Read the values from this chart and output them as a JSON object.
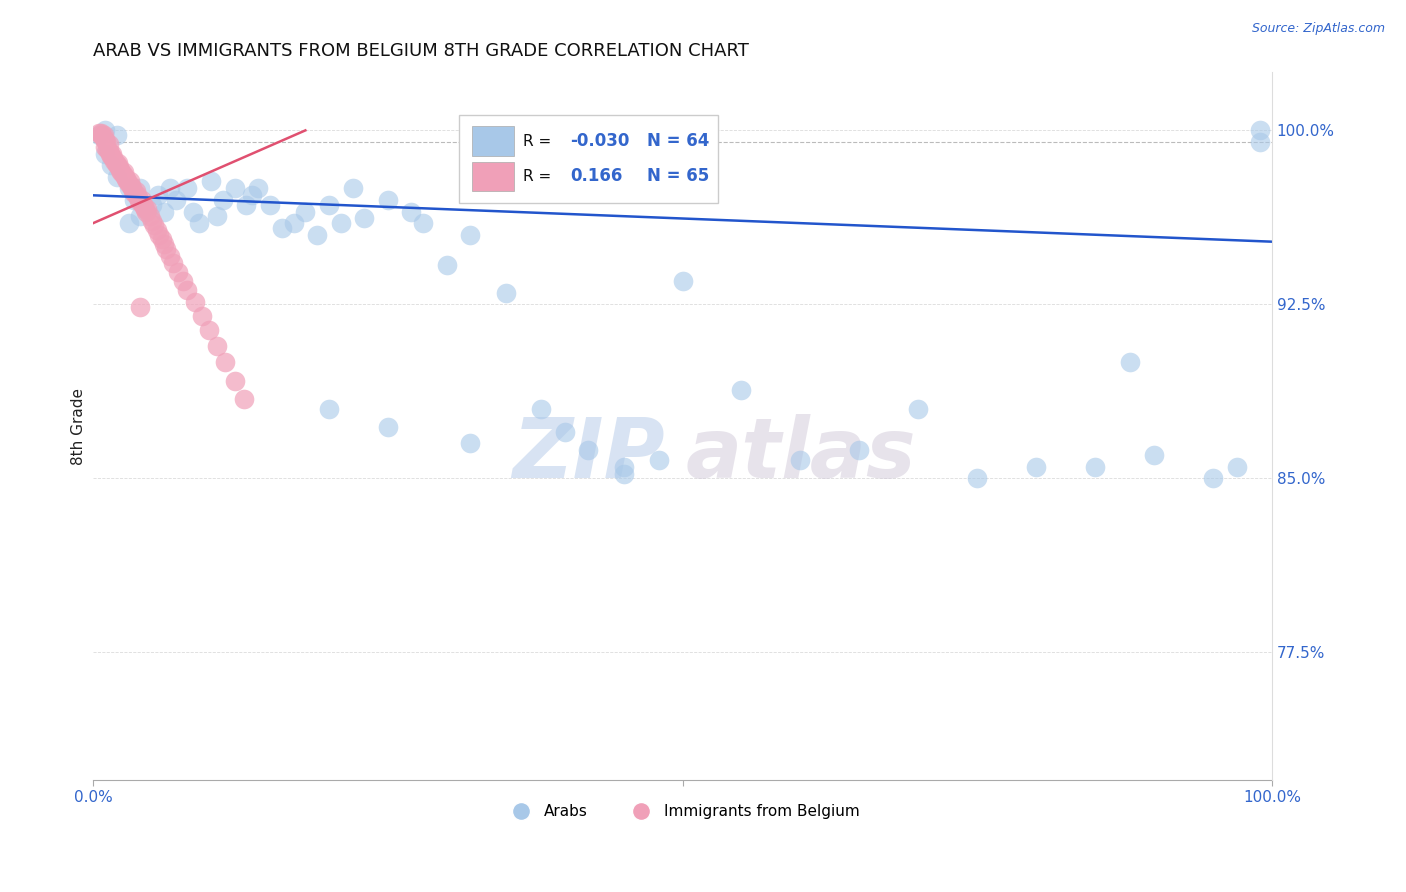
{
  "title": "ARAB VS IMMIGRANTS FROM BELGIUM 8TH GRADE CORRELATION CHART",
  "source": "Source: ZipAtlas.com",
  "ylabel": "8th Grade",
  "xlim": [
    0,
    1
  ],
  "ylim": [
    0.72,
    1.025
  ],
  "blue_color": "#a8c8e8",
  "pink_color": "#f0a0b8",
  "blue_line_color": "#2255cc",
  "pink_line_color": "#e05070",
  "R_blue": -0.03,
  "N_blue": 64,
  "R_pink": 0.166,
  "N_pink": 65,
  "legend_label_blue": "Arabs",
  "legend_label_pink": "Immigrants from Belgium",
  "right_ytick_values": [
    0.775,
    0.85,
    0.925,
    1.0
  ],
  "right_ytick_labels": [
    "77.5%",
    "85.0%",
    "92.5%",
    "100.0%"
  ],
  "dashed_line_y": 0.995,
  "blue_line_x": [
    0.0,
    1.0
  ],
  "blue_line_y": [
    0.972,
    0.952
  ],
  "pink_line_x": [
    0.0,
    0.18
  ],
  "pink_line_y": [
    0.96,
    1.0
  ],
  "blue_scatter_x": [
    0.005,
    0.01,
    0.01,
    0.015,
    0.02,
    0.02,
    0.03,
    0.03,
    0.035,
    0.04,
    0.04,
    0.05,
    0.055,
    0.06,
    0.065,
    0.07,
    0.08,
    0.085,
    0.09,
    0.1,
    0.105,
    0.11,
    0.12,
    0.13,
    0.135,
    0.14,
    0.15,
    0.16,
    0.17,
    0.18,
    0.19,
    0.2,
    0.21,
    0.22,
    0.23,
    0.25,
    0.27,
    0.28,
    0.3,
    0.32,
    0.35,
    0.38,
    0.4,
    0.42,
    0.45,
    0.48,
    0.5,
    0.55,
    0.6,
    0.65,
    0.7,
    0.75,
    0.8,
    0.85,
    0.88,
    0.9,
    0.95,
    0.97,
    0.99,
    0.99,
    0.2,
    0.25,
    0.32,
    0.45
  ],
  "blue_scatter_y": [
    0.998,
    1.0,
    0.99,
    0.985,
    0.998,
    0.98,
    0.975,
    0.96,
    0.97,
    0.975,
    0.963,
    0.968,
    0.972,
    0.965,
    0.975,
    0.97,
    0.975,
    0.965,
    0.96,
    0.978,
    0.963,
    0.97,
    0.975,
    0.968,
    0.972,
    0.975,
    0.968,
    0.958,
    0.96,
    0.965,
    0.955,
    0.968,
    0.96,
    0.975,
    0.962,
    0.97,
    0.965,
    0.96,
    0.942,
    0.955,
    0.93,
    0.88,
    0.87,
    0.862,
    0.855,
    0.858,
    0.935,
    0.888,
    0.858,
    0.862,
    0.88,
    0.85,
    0.855,
    0.855,
    0.9,
    0.86,
    0.85,
    0.855,
    1.0,
    0.995,
    0.88,
    0.872,
    0.865,
    0.852
  ],
  "pink_scatter_x": [
    0.005,
    0.007,
    0.008,
    0.01,
    0.01,
    0.012,
    0.013,
    0.014,
    0.015,
    0.016,
    0.017,
    0.018,
    0.019,
    0.02,
    0.021,
    0.022,
    0.023,
    0.024,
    0.025,
    0.026,
    0.027,
    0.028,
    0.029,
    0.03,
    0.031,
    0.032,
    0.033,
    0.034,
    0.035,
    0.036,
    0.037,
    0.038,
    0.039,
    0.04,
    0.041,
    0.042,
    0.043,
    0.044,
    0.045,
    0.046,
    0.048,
    0.05,
    0.052,
    0.054,
    0.056,
    0.058,
    0.06,
    0.062,
    0.065,
    0.068,
    0.072,
    0.076,
    0.08,
    0.086,
    0.092,
    0.098,
    0.105,
    0.112,
    0.12,
    0.128,
    0.007,
    0.009,
    0.011,
    0.013,
    0.04
  ],
  "pink_scatter_y": [
    0.999,
    0.998,
    0.997,
    0.996,
    0.993,
    0.992,
    0.991,
    0.99,
    0.989,
    0.99,
    0.988,
    0.987,
    0.986,
    0.985,
    0.986,
    0.984,
    0.983,
    0.982,
    0.981,
    0.982,
    0.98,
    0.979,
    0.978,
    0.977,
    0.978,
    0.976,
    0.975,
    0.974,
    0.973,
    0.974,
    0.972,
    0.971,
    0.97,
    0.969,
    0.97,
    0.968,
    0.967,
    0.966,
    0.965,
    0.966,
    0.963,
    0.961,
    0.959,
    0.957,
    0.955,
    0.953,
    0.951,
    0.949,
    0.946,
    0.943,
    0.939,
    0.935,
    0.931,
    0.926,
    0.92,
    0.914,
    0.907,
    0.9,
    0.892,
    0.884,
    0.999,
    0.998,
    0.995,
    0.994,
    0.924
  ]
}
